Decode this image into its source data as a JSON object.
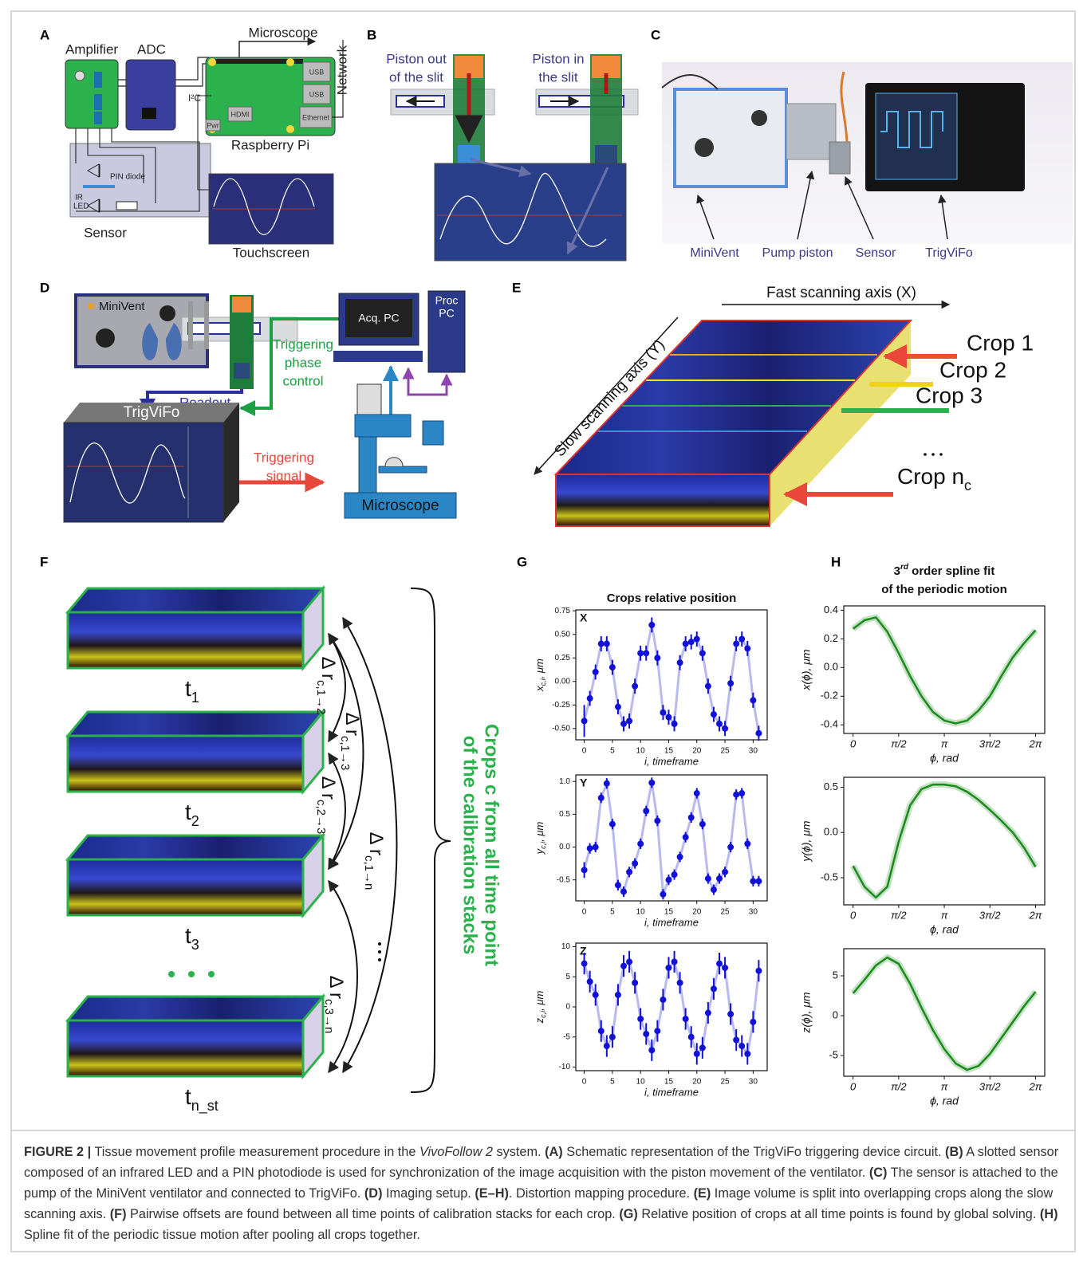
{
  "panel_labels": [
    "A",
    "B",
    "C",
    "D",
    "E",
    "F",
    "G",
    "H"
  ],
  "panel_a": {
    "amplifier": "Amplifier",
    "adc": "ADC",
    "microscope": "Microscope",
    "network": "Network",
    "i2c": "I²C",
    "raspberry_pi": "Raspberry Pi",
    "touchscreen": "Touchscreen",
    "sensor": "Sensor",
    "pin_diode": "PIN diode",
    "ir_led": [
      "IR",
      "LED"
    ],
    "usb_1": "USB",
    "usb_2": "USB",
    "ethernet": "Ethernet",
    "hdmi": "HDMI",
    "pwr": "Pwr"
  },
  "panel_b": {
    "piston_out": [
      "Piston out",
      "of the slit"
    ],
    "piston_in": [
      "Piston in",
      "the slit"
    ]
  },
  "panel_c": {
    "labels": [
      "MiniVent",
      "Pump piston",
      "Sensor",
      "TrigViFo"
    ]
  },
  "panel_d": {
    "minivent": "MiniVent",
    "acq_pc": "Acq. PC",
    "proc_pc": [
      "Proc",
      "PC"
    ],
    "trigger_control": [
      "Triggering",
      "phase",
      "control"
    ],
    "readout": "Readout",
    "trigvifo": "TrigViFo",
    "trigger_signal": [
      "Triggering",
      "signal"
    ],
    "microscope": "Microscope"
  },
  "panel_e": {
    "fast_axis": "Fast scanning axis (X)",
    "slow_axis": "Slow scanning axis (Y)",
    "crops": [
      "Crop 1",
      "Crop 2",
      "Crop 3"
    ],
    "crop_n": {
      "text": "Crop n",
      "subscript": "c"
    }
  },
  "panel_f": {
    "timepoints": [
      {
        "text": "t",
        "subscript": "1"
      },
      {
        "text": "t",
        "subscript": "2"
      },
      {
        "text": "t",
        "subscript": "3"
      },
      {
        "text": "t",
        "subscript": "n_st"
      }
    ],
    "offsets": [
      {
        "text": "Δ r",
        "subscript": "c,1→2"
      },
      {
        "text": "Δ r",
        "subscript": "c,1→3"
      },
      {
        "text": "Δ r",
        "subscript": "c,2→3"
      },
      {
        "text": "Δ r",
        "subscript": "c,1→n"
      },
      {
        "text": "Δ r",
        "subscript": "c,3→n"
      }
    ],
    "brace_text": [
      "Crops c  from all time point",
      "of the calibration stacks"
    ]
  },
  "chart_data": [
    {
      "type": "errorbar",
      "title": "Crops relative position",
      "inset_label": "X",
      "xlabel": "i, timeframe",
      "ylabel": {
        "text": "x",
        "subscript": "c,i",
        "unit": ", μm"
      },
      "x": [
        0,
        1,
        2,
        3,
        4,
        5,
        6,
        7,
        8,
        9,
        10,
        11,
        12,
        13,
        14,
        15,
        16,
        17,
        18,
        19,
        20,
        21,
        22,
        23,
        24,
        25,
        26,
        27,
        28,
        29,
        30,
        31
      ],
      "values": [
        -0.42,
        -0.18,
        0.1,
        0.4,
        0.4,
        0.15,
        -0.27,
        -0.45,
        -0.42,
        -0.05,
        0.3,
        0.3,
        0.6,
        0.25,
        -0.33,
        -0.38,
        -0.45,
        0.2,
        0.4,
        0.42,
        0.45,
        0.3,
        -0.05,
        -0.35,
        -0.45,
        -0.5,
        -0.02,
        0.4,
        0.45,
        0.35,
        -0.2,
        -0.55
      ],
      "errors": [
        0.17,
        0.08,
        0.08,
        0.08,
        0.08,
        0.08,
        0.08,
        0.08,
        0.08,
        0.08,
        0.08,
        0.08,
        0.08,
        0.08,
        0.08,
        0.08,
        0.08,
        0.08,
        0.08,
        0.08,
        0.08,
        0.08,
        0.08,
        0.08,
        0.08,
        0.08,
        0.08,
        0.08,
        0.08,
        0.08,
        0.08,
        0.08
      ],
      "color": "#1010d8",
      "line_color": "#b9b9f2",
      "xlim": [
        -1.5,
        32.5
      ],
      "ylim": [
        -0.62,
        0.76
      ],
      "xticks": [
        0,
        5,
        10,
        15,
        20,
        25,
        30
      ],
      "yticks": [
        {
          "value": -0.5,
          "label": "-0.50"
        },
        {
          "value": -0.25,
          "label": "-0.25"
        },
        {
          "value": 0,
          "label": "0.00"
        },
        {
          "value": 0.25,
          "label": "0.25"
        },
        {
          "value": 0.5,
          "label": "0.50"
        },
        {
          "value": 0.75,
          "label": "0.75"
        }
      ]
    },
    {
      "type": "errorbar",
      "inset_label": "Y",
      "xlabel": "i, timeframe",
      "ylabel": {
        "text": "y",
        "subscript": "c,i",
        "unit": ", μm"
      },
      "x": [
        0,
        1,
        2,
        3,
        4,
        5,
        6,
        7,
        8,
        9,
        10,
        11,
        12,
        13,
        14,
        15,
        16,
        17,
        18,
        19,
        20,
        21,
        22,
        23,
        24,
        25,
        26,
        27,
        28,
        29,
        30,
        31
      ],
      "values": [
        -0.35,
        -0.02,
        0,
        0.75,
        0.97,
        0.35,
        -0.58,
        -0.68,
        -0.38,
        -0.25,
        0.05,
        0.55,
        0.98,
        0.4,
        -0.72,
        -0.5,
        -0.42,
        -0.15,
        0.15,
        0.45,
        0.82,
        0.35,
        -0.48,
        -0.65,
        -0.48,
        -0.38,
        0,
        0.8,
        0.82,
        0.05,
        -0.52,
        -0.52
      ],
      "errors": [
        0.12,
        0.08,
        0.08,
        0.08,
        0.08,
        0.08,
        0.08,
        0.08,
        0.08,
        0.08,
        0.08,
        0.08,
        0.08,
        0.08,
        0.08,
        0.08,
        0.08,
        0.08,
        0.08,
        0.08,
        0.08,
        0.08,
        0.08,
        0.08,
        0.08,
        0.08,
        0.08,
        0.08,
        0.08,
        0.08,
        0.08,
        0.08
      ],
      "color": "#1010d8",
      "line_color": "#b9b9f2",
      "xlim": [
        -1.5,
        32.5
      ],
      "ylim": [
        -0.82,
        1.1
      ],
      "xticks": [
        0,
        5,
        10,
        15,
        20,
        25,
        30
      ],
      "yticks": [
        {
          "value": -0.5,
          "label": "-0.5"
        },
        {
          "value": 0,
          "label": "0.0"
        },
        {
          "value": 0.5,
          "label": "0.5"
        },
        {
          "value": 1,
          "label": "1.0"
        }
      ]
    },
    {
      "type": "errorbar",
      "inset_label": "Z",
      "xlabel": "i, timeframe",
      "ylabel": {
        "text": "z",
        "subscript": "c,i",
        "unit": ", μm"
      },
      "x": [
        0,
        1,
        2,
        3,
        4,
        5,
        6,
        7,
        8,
        9,
        10,
        11,
        12,
        13,
        14,
        15,
        16,
        17,
        18,
        19,
        20,
        21,
        22,
        23,
        24,
        25,
        26,
        27,
        28,
        29,
        30,
        31
      ],
      "values": [
        7.2,
        4.2,
        2,
        -4,
        -6.5,
        -5,
        2,
        6.8,
        7.5,
        4,
        -2,
        -4.5,
        -7.2,
        -4,
        1.2,
        6.5,
        7.5,
        4,
        -2,
        -5,
        -7.8,
        -6.8,
        -1,
        3,
        7.2,
        6.5,
        -1.2,
        -5.5,
        -6.5,
        -7.8,
        -2.5,
        6
      ],
      "errors": [
        1.8,
        1.8,
        1.8,
        1.8,
        1.8,
        1.8,
        1.8,
        1.8,
        1.8,
        1.8,
        1.8,
        1.8,
        1.8,
        1.8,
        1.8,
        1.8,
        1.8,
        1.8,
        1.8,
        1.8,
        1.8,
        1.8,
        1.8,
        1.8,
        1.8,
        1.8,
        1.8,
        1.8,
        1.8,
        1.8,
        1.8,
        1.8
      ],
      "color": "#1010d8",
      "line_color": "#b9b9f2",
      "xlim": [
        -1.5,
        32.5
      ],
      "ylim": [
        -10.6,
        10.6
      ],
      "xticks": [
        0,
        5,
        10,
        15,
        20,
        25,
        30
      ],
      "yticks": [
        -10,
        -5,
        0,
        5,
        10
      ]
    },
    {
      "type": "line",
      "title": {
        "ordinal": "3",
        "suffix": "rd",
        "rest": " order spline fit",
        "line2": "of the periodic motion"
      },
      "xlabel": "ϕ, rad",
      "ylabel": "x(ϕ), μm",
      "x": [
        0,
        0.3927,
        0.7854,
        1.1781,
        1.5708,
        1.9635,
        2.3562,
        2.7489,
        3.1416,
        3.5343,
        3.927,
        4.3197,
        4.7124,
        5.1051,
        5.4978,
        5.8905,
        6.2832
      ],
      "values": [
        0.27,
        0.33,
        0.35,
        0.25,
        0.1,
        -0.06,
        -0.2,
        -0.31,
        -0.37,
        -0.39,
        -0.37,
        -0.3,
        -0.2,
        -0.06,
        0.07,
        0.17,
        0.26
      ],
      "color": "#1a8a1a",
      "xlim": [
        -0.32,
        6.6
      ],
      "ylim": [
        -0.46,
        0.43
      ],
      "xticks": [
        0,
        {
          "value": 1.5708,
          "label": "π/2"
        },
        {
          "value": 3.1416,
          "label": "π"
        },
        {
          "value": 4.7124,
          "label": "3π/2"
        },
        {
          "value": 6.2832,
          "label": "2π"
        }
      ],
      "yticks": [
        -0.4,
        -0.2,
        {
          "value": 0,
          "label": "0.0"
        },
        0.2,
        0.4
      ]
    },
    {
      "type": "line",
      "xlabel": "ϕ, rad",
      "ylabel": "y(ϕ), μm",
      "x": [
        0,
        0.3927,
        0.7854,
        1.1781,
        1.5708,
        1.9635,
        2.3562,
        2.7489,
        3.1416,
        3.5343,
        3.927,
        4.3197,
        4.7124,
        5.1051,
        5.4978,
        5.8905,
        6.2832
      ],
      "values": [
        -0.37,
        -0.6,
        -0.72,
        -0.6,
        -0.1,
        0.3,
        0.48,
        0.53,
        0.53,
        0.51,
        0.45,
        0.36,
        0.25,
        0.13,
        0,
        -0.17,
        -0.38
      ],
      "color": "#1a8a1a",
      "xlim": [
        -0.32,
        6.6
      ],
      "ylim": [
        -0.8,
        0.61
      ],
      "xticks": [
        0,
        {
          "value": 1.5708,
          "label": "π/2"
        },
        {
          "value": 3.1416,
          "label": "π"
        },
        {
          "value": 4.7124,
          "label": "3π/2"
        },
        {
          "value": 6.2832,
          "label": "2π"
        }
      ],
      "yticks": [
        -0.5,
        {
          "value": 0,
          "label": "0.0"
        },
        0.5
      ]
    },
    {
      "type": "line",
      "xlabel": "ϕ, rad",
      "ylabel": "z(ϕ), μm",
      "x": [
        0,
        0.3927,
        0.7854,
        1.1781,
        1.5708,
        1.9635,
        2.3562,
        2.7489,
        3.1416,
        3.5343,
        3.927,
        4.3197,
        4.7124,
        5.1051,
        5.4978,
        5.8905,
        6.2832
      ],
      "values": [
        2.8,
        4.5,
        6.3,
        7.3,
        6.5,
        4,
        1,
        -1.8,
        -4.2,
        -6,
        -6.8,
        -6.3,
        -4.8,
        -2.8,
        -0.8,
        1.2,
        3
      ],
      "color": "#1a8a1a",
      "xlim": [
        -0.32,
        6.6
      ],
      "ylim": [
        -7.6,
        8.4
      ],
      "xticks": [
        0,
        {
          "value": 1.5708,
          "label": "π/2"
        },
        {
          "value": 3.1416,
          "label": "π"
        },
        {
          "value": 4.7124,
          "label": "3π/2"
        },
        {
          "value": 6.2832,
          "label": "2π"
        }
      ],
      "yticks": [
        -5,
        0,
        5
      ]
    }
  ],
  "caption": [
    {
      "text": "FIGURE 2 |",
      "style": "bold"
    },
    {
      "text": " Tissue movement profile measurement procedure in the ",
      "style": "normal"
    },
    {
      "text": "VivoFollow 2",
      "style": "italic"
    },
    {
      "text": " system. ",
      "style": "normal"
    },
    {
      "text": "(A)",
      "style": "bold"
    },
    {
      "text": " Schematic representation of the TrigViFo triggering device circuit. ",
      "style": "normal"
    },
    {
      "text": "(B)",
      "style": "bold"
    },
    {
      "text": " A slotted sensor composed of an infrared LED and a PIN photodiode is used for synchronization of the image acquisition with the piston movement of the ventilator. ",
      "style": "normal"
    },
    {
      "text": "(C)",
      "style": "bold"
    },
    {
      "text": " The sensor is attached to the pump of the MiniVent ventilator and connected to TrigViFo. ",
      "style": "normal"
    },
    {
      "text": "(D)",
      "style": "bold"
    },
    {
      "text": " Imaging setup. ",
      "style": "normal"
    },
    {
      "text": "(E–H)",
      "style": "bold"
    },
    {
      "text": ". Distortion mapping procedure. ",
      "style": "normal"
    },
    {
      "text": "(E)",
      "style": "bold"
    },
    {
      "text": " Image volume is split into overlapping crops along the slow scanning axis. ",
      "style": "normal"
    },
    {
      "text": "(F)",
      "style": "bold"
    },
    {
      "text": " Pairwise offsets are found between all time points of calibration stacks for each crop. ",
      "style": "normal"
    },
    {
      "text": "(G)",
      "style": "bold"
    },
    {
      "text": " Relative position of crops at all time points is found by global solving. ",
      "style": "normal"
    },
    {
      "text": "(H)",
      "style": "bold"
    },
    {
      "text": " Spline fit of the periodic tissue motion after pooling all crops together.",
      "style": "normal"
    }
  ]
}
